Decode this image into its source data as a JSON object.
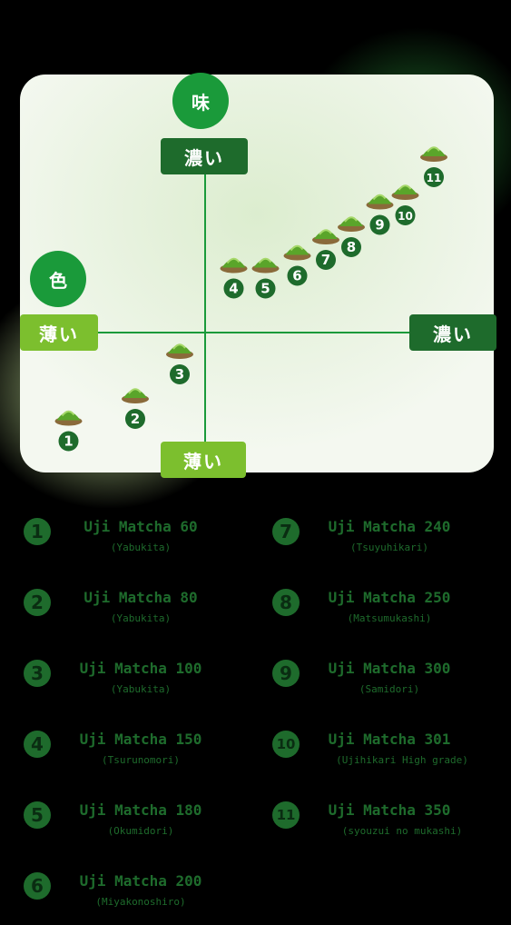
{
  "chart_data": {
    "type": "scatter",
    "title": "",
    "y_axis": {
      "label": "味",
      "high": "濃い",
      "low": "薄い"
    },
    "x_axis": {
      "label": "色",
      "high": "濃い",
      "low": "薄い"
    },
    "points": [
      {
        "id": "1",
        "x": -4.3,
        "y": -3.3
      },
      {
        "id": "2",
        "x": -2.2,
        "y": -2.6
      },
      {
        "id": "3",
        "x": -0.8,
        "y": -1.2
      },
      {
        "id": "4",
        "x": 0.9,
        "y": 1.5
      },
      {
        "id": "5",
        "x": 1.9,
        "y": 1.5
      },
      {
        "id": "6",
        "x": 2.9,
        "y": 1.9
      },
      {
        "id": "7",
        "x": 3.8,
        "y": 2.4
      },
      {
        "id": "8",
        "x": 4.6,
        "y": 2.8
      },
      {
        "id": "9",
        "x": 5.5,
        "y": 3.5
      },
      {
        "id": "10",
        "x": 6.3,
        "y": 3.8
      },
      {
        "id": "11",
        "x": 7.2,
        "y": 5.0
      }
    ]
  },
  "legend": [
    {
      "num": "1",
      "name": "Uji Matcha 60",
      "sub": "(Yabukita)"
    },
    {
      "num": "2",
      "name": "Uji Matcha 80",
      "sub": "(Yabukita)"
    },
    {
      "num": "3",
      "name": "Uji Matcha 100",
      "sub": "(Yabukita)"
    },
    {
      "num": "4",
      "name": "Uji Matcha 150",
      "sub": "(Tsurunomori)"
    },
    {
      "num": "5",
      "name": "Uji Matcha 180",
      "sub": "(Okumidori)"
    },
    {
      "num": "6",
      "name": "Uji Matcha 200",
      "sub": "(Miyakonoshiro)"
    },
    {
      "num": "7",
      "name": "Uji Matcha 240",
      "sub": "(Tsuyuhikari)"
    },
    {
      "num": "8",
      "name": "Uji Matcha 250",
      "sub": "(Matsumukashi)"
    },
    {
      "num": "9",
      "name": "Uji Matcha 300",
      "sub": "(Samidori)"
    },
    {
      "num": "10",
      "name": "Uji Matcha 301",
      "sub": "(Ujihikari High grade)"
    },
    {
      "num": "11",
      "name": "Uji Matcha 350",
      "sub": "(syouzui no mukashi)"
    }
  ],
  "colors": {
    "dark_green": "#1e6b2c",
    "bright_green": "#1a9a3a",
    "light_green": "#8cc63f",
    "panel": "#eef6e6"
  },
  "icons": {
    "marker": "matcha-powder-mound-icon"
  }
}
